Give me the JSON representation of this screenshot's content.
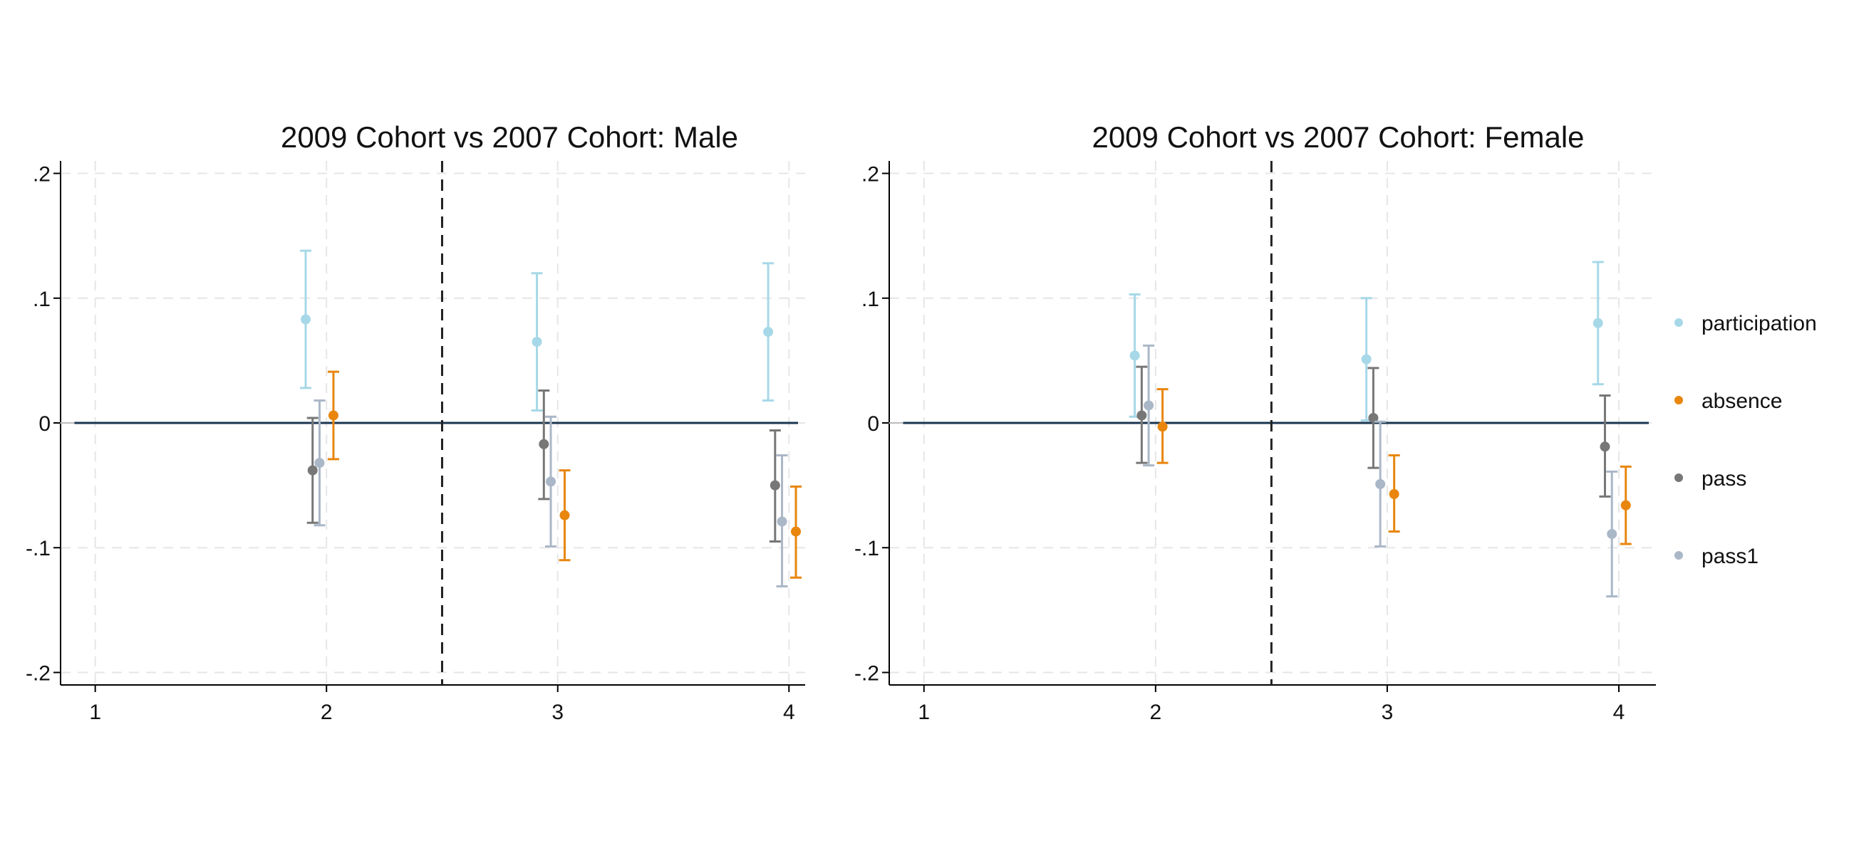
{
  "colors": {
    "participation": "#a7d8e8",
    "absence": "#e8860e",
    "pass": "#777777",
    "pass1": "#aab7c7",
    "zero_line": "#1a3550",
    "grid": "#e6e6e6",
    "vline": "#222222"
  },
  "legend": {
    "position": "right",
    "items": [
      "participation",
      "absence",
      "pass",
      "pass1"
    ]
  },
  "chart_data": [
    {
      "type": "scatter",
      "title": "2009 Cohort vs 2007 Cohort: Male",
      "xlabel": "",
      "ylabel": "",
      "xlim": [
        0.85,
        4.07
      ],
      "ylim": [
        -0.21,
        0.21
      ],
      "xticks": [
        1,
        2,
        3,
        4
      ],
      "xtick_labels": [
        "1",
        "2",
        "3",
        "4"
      ],
      "yticks": [
        0.2,
        0.1,
        0,
        -0.1,
        -0.2
      ],
      "ytick_labels": [
        ".2",
        ".1",
        "0",
        "-.1",
        "-.2"
      ],
      "grid": true,
      "reference_hline": 0,
      "reference_vline": 2.5,
      "x_offsets": {
        "participation": -0.09,
        "pass": -0.06,
        "pass1": -0.03,
        "absence": 0.03
      },
      "series": [
        {
          "name": "participation",
          "x": [
            2,
            3,
            4
          ],
          "y": [
            0.083,
            0.065,
            0.073
          ],
          "lo": [
            0.028,
            0.01,
            0.018
          ],
          "hi": [
            0.138,
            0.12,
            0.128
          ]
        },
        {
          "name": "absence",
          "x": [
            2,
            3,
            4
          ],
          "y": [
            0.006,
            -0.074,
            -0.087
          ],
          "lo": [
            -0.029,
            -0.11,
            -0.124
          ],
          "hi": [
            0.041,
            -0.038,
            -0.051
          ]
        },
        {
          "name": "pass",
          "x": [
            2,
            3,
            4
          ],
          "y": [
            -0.038,
            -0.017,
            -0.05
          ],
          "lo": [
            -0.08,
            -0.061,
            -0.095
          ],
          "hi": [
            0.004,
            0.026,
            -0.006
          ]
        },
        {
          "name": "pass1",
          "x": [
            2,
            3,
            4
          ],
          "y": [
            -0.032,
            -0.047,
            -0.079
          ],
          "lo": [
            -0.082,
            -0.099,
            -0.131
          ],
          "hi": [
            0.018,
            0.005,
            -0.026
          ]
        }
      ]
    },
    {
      "type": "scatter",
      "title": "2009 Cohort vs 2007 Cohort: Female",
      "xlabel": "",
      "ylabel": "",
      "xlim": [
        0.85,
        4.16
      ],
      "ylim": [
        -0.21,
        0.21
      ],
      "xticks": [
        1,
        2,
        3,
        4
      ],
      "xtick_labels": [
        "1",
        "2",
        "3",
        "4"
      ],
      "yticks": [
        0.2,
        0.1,
        0,
        -0.1,
        -0.2
      ],
      "ytick_labels": [
        ".2",
        ".1",
        "0",
        "-.1",
        "-.2"
      ],
      "grid": true,
      "reference_hline": 0,
      "reference_vline": 2.5,
      "x_offsets": {
        "participation": -0.09,
        "pass": -0.06,
        "pass1": -0.03,
        "absence": 0.03
      },
      "series": [
        {
          "name": "participation",
          "x": [
            2,
            3,
            4
          ],
          "y": [
            0.054,
            0.051,
            0.08
          ],
          "lo": [
            0.005,
            0.002,
            0.031
          ],
          "hi": [
            0.103,
            0.1,
            0.129
          ]
        },
        {
          "name": "absence",
          "x": [
            2,
            3,
            4
          ],
          "y": [
            -0.003,
            -0.057,
            -0.066
          ],
          "lo": [
            -0.032,
            -0.087,
            -0.097
          ],
          "hi": [
            0.027,
            -0.026,
            -0.035
          ]
        },
        {
          "name": "pass",
          "x": [
            2,
            3,
            4
          ],
          "y": [
            0.006,
            0.004,
            -0.019
          ],
          "lo": [
            -0.032,
            -0.036,
            -0.059
          ],
          "hi": [
            0.045,
            0.044,
            0.022
          ]
        },
        {
          "name": "pass1",
          "x": [
            2,
            3,
            4
          ],
          "y": [
            0.014,
            -0.049,
            -0.089
          ],
          "lo": [
            -0.034,
            -0.099,
            -0.139
          ],
          "hi": [
            0.062,
            0.001,
            -0.039
          ]
        }
      ]
    }
  ]
}
